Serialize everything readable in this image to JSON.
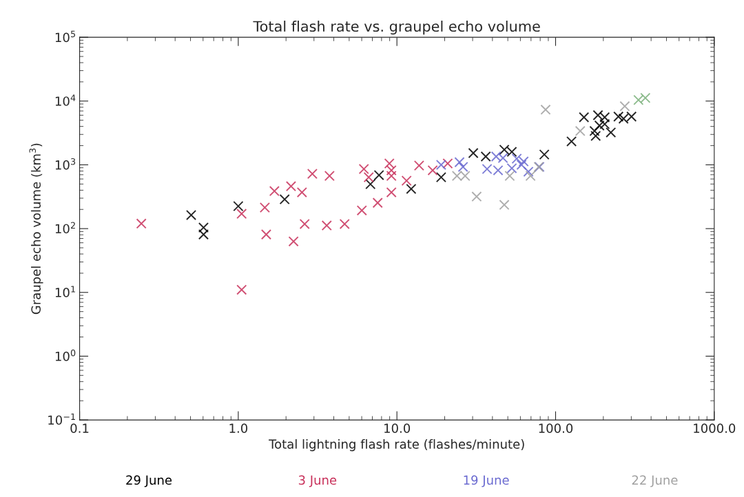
{
  "chart_data": {
    "type": "scatter",
    "title": "Total flash rate vs. graupel echo volume",
    "xlabel": "Total lightning flash rate (flashes/minute)",
    "ylabel": "Graupel echo volume (km$^{3}$)",
    "log": "xy",
    "xlim": [
      0.1,
      1000
    ],
    "ylim": [
      0.1,
      100000
    ],
    "xticks": [
      0.1,
      {
        "value": 1,
        "label": "1.0"
      },
      {
        "value": 10,
        "label": "10.0"
      },
      {
        "value": 100,
        "label": "100.0"
      },
      {
        "value": 1000,
        "label": "1000.0"
      }
    ],
    "yticks": [
      {
        "value": 0.1,
        "label": "10$^{−1}$"
      },
      {
        "value": 1,
        "label": "10$^{0}$"
      },
      {
        "value": 10,
        "label": "10$^{1}$"
      },
      {
        "value": 100,
        "label": "10$^{2}$"
      },
      {
        "value": 1000,
        "label": "10$^{3}$"
      },
      {
        "value": 10000,
        "label": "10$^{4}$"
      },
      {
        "value": 100000,
        "label": "10$^{5}$"
      }
    ],
    "grid": false,
    "legend": "bottom",
    "marker": "cross",
    "series": [
      {
        "name": "29 June",
        "color": "#000000",
        "x": [
          0.505,
          0.604,
          0.604,
          1.0,
          1.96,
          7.71,
          6.81,
          12.3,
          19.0,
          30.3,
          36.3,
          47.5,
          53.0,
          84.9,
          126,
          151,
          185,
          204,
          189,
          204,
          176,
          179,
          223,
          249,
          268,
          301
        ],
        "values": [
          163,
          104,
          81,
          225,
          288,
          689,
          498,
          419,
          639,
          1530,
          1350,
          1730,
          1600,
          1450,
          2330,
          5570,
          6000,
          5570,
          4130,
          4350,
          3390,
          2840,
          3220,
          5710,
          5300,
          5710
        ]
      },
      {
        "name": "3 June",
        "color": "#c8305a",
        "x": [
          0.245,
          1.05,
          1.47,
          1.69,
          2.15,
          2.52,
          2.93,
          3.76,
          2.62,
          3.61,
          1.5,
          2.23,
          1.05,
          6.19,
          6.64,
          8.96,
          9.23,
          9.23,
          11.5,
          9.23,
          7.56,
          6.01,
          4.68,
          13.8,
          16.8,
          20.9
        ],
        "values": [
          120,
          171,
          214,
          388,
          462,
          370,
          723,
          671,
          118,
          112,
          81,
          63,
          11,
          861,
          639,
          1050,
          671,
          820,
          564,
          370,
          254,
          193,
          118,
          975,
          820,
          1050
        ]
      },
      {
        "name": "19 June",
        "color": "#6a6ad0",
        "x": [
          19.0,
          24.8,
          26.1,
          46.6,
          56.9,
          62.9,
          37.0,
          43.4,
          53.0,
          61.0,
          67.4,
          79.1,
          42.2
        ],
        "values": [
          1000,
          1100,
          929,
          1280,
          1250,
          1130,
          861,
          820,
          883,
          1000,
          780,
          929,
          1350
        ]
      },
      {
        "name": "22 June",
        "color": "#a0a0a0",
        "x": [
          23.9,
          26.9,
          51.4,
          69.5,
          78.3,
          31.8,
          47.5,
          86.5,
          143,
          273
        ],
        "values": [
          671,
          671,
          671,
          671,
          929,
          318,
          236,
          7330,
          3390,
          8300
        ]
      },
      {
        "color": "#7ab07a",
        "x": [
          333,
          368
        ],
        "values": [
          10400,
          11200
        ]
      }
    ]
  }
}
